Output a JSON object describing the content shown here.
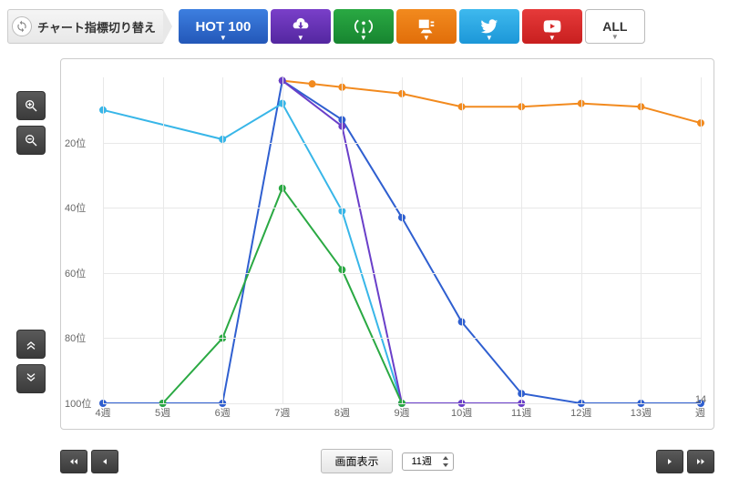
{
  "nav": {
    "label": "チャート指標切り替え",
    "tabs": [
      {
        "id": "hot100",
        "label": "HOT 100",
        "bg": [
          "#3d7fe0",
          "#2357b8"
        ]
      },
      {
        "id": "download",
        "bg": [
          "#7a3fc9",
          "#5427a0"
        ]
      },
      {
        "id": "streaming",
        "bg": [
          "#2aa943",
          "#178530"
        ]
      },
      {
        "id": "lookup",
        "bg": [
          "#f28a1e",
          "#e16e0a"
        ]
      },
      {
        "id": "twitter",
        "bg": [
          "#3eb9ee",
          "#1c97d8"
        ]
      },
      {
        "id": "youtube",
        "bg": [
          "#e63a3a",
          "#c81f1f"
        ]
      },
      {
        "id": "all",
        "label": "ALL"
      }
    ]
  },
  "chart": {
    "type": "line",
    "x_labels": [
      "4週",
      "5週",
      "6週",
      "7週",
      "8週",
      "9週",
      "10週",
      "11週",
      "12週",
      "13週",
      "14週"
    ],
    "y_label_suffix": "位",
    "ylim": [
      0,
      100
    ],
    "yticks": [
      20,
      40,
      60,
      80,
      100
    ],
    "background": "#ffffff",
    "grid_color": "#e8e8e8",
    "point_radius": 4,
    "line_width": 2,
    "series": [
      {
        "name": "orange",
        "color": "#f28a1e",
        "points": [
          [
            7,
            1
          ],
          [
            7.5,
            2
          ],
          [
            8,
            3
          ],
          [
            9,
            5
          ],
          [
            10,
            9
          ],
          [
            11,
            9
          ],
          [
            12,
            8
          ],
          [
            13,
            9
          ],
          [
            14,
            14
          ]
        ]
      },
      {
        "name": "blue",
        "color": "#2f5fd0",
        "points": [
          [
            4,
            100
          ],
          [
            5,
            100
          ],
          [
            6,
            100
          ],
          [
            7,
            1
          ],
          [
            8,
            13
          ],
          [
            9,
            43
          ],
          [
            10,
            75
          ],
          [
            11,
            97
          ],
          [
            12,
            100
          ],
          [
            13,
            100
          ],
          [
            14,
            100
          ]
        ]
      },
      {
        "name": "cyan",
        "color": "#38b6e8",
        "points": [
          [
            4,
            10
          ],
          [
            6,
            19
          ],
          [
            7,
            8
          ],
          [
            8,
            41
          ],
          [
            9,
            100
          ]
        ]
      },
      {
        "name": "purple",
        "color": "#6a3fc9",
        "points": [
          [
            7,
            1
          ],
          [
            8,
            15
          ],
          [
            9,
            100
          ],
          [
            10,
            100
          ],
          [
            11,
            100
          ]
        ]
      },
      {
        "name": "green",
        "color": "#2aa943",
        "points": [
          [
            5,
            100
          ],
          [
            6,
            80
          ],
          [
            7,
            34
          ],
          [
            8,
            59
          ],
          [
            9,
            100
          ]
        ]
      }
    ]
  },
  "controls": {
    "display_label": "画面表示",
    "select_value": "11週"
  }
}
